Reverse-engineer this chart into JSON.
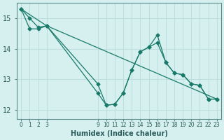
{
  "xlabel": "Humidex (Indice chaleur)",
  "background_color": "#d6f0f0",
  "grid_color": "#c0dede",
  "line_color": "#1a7a6a",
  "xlim": [
    -0.5,
    23.5
  ],
  "ylim": [
    11.7,
    15.5
  ],
  "yticks": [
    12,
    13,
    14,
    15
  ],
  "xticks": [
    0,
    1,
    2,
    3,
    9,
    10,
    11,
    12,
    13,
    14,
    15,
    16,
    17,
    18,
    19,
    20,
    21,
    22,
    23
  ],
  "series1_x": [
    0,
    1,
    2,
    3,
    9,
    10,
    11,
    12,
    13,
    14,
    15,
    16,
    17,
    18,
    19,
    20,
    21,
    22,
    23
  ],
  "series1_y": [
    15.3,
    15.0,
    14.7,
    14.75,
    12.55,
    12.15,
    12.18,
    12.55,
    13.3,
    13.9,
    14.05,
    14.2,
    13.55,
    13.2,
    13.15,
    12.85,
    12.8,
    12.35,
    12.35
  ],
  "series2_x": [
    0,
    1,
    2,
    3,
    9,
    10,
    11,
    12,
    13,
    14,
    15,
    16,
    17,
    18,
    19,
    20,
    21,
    22,
    23
  ],
  "series2_y": [
    15.3,
    14.65,
    14.65,
    14.75,
    12.85,
    12.15,
    12.18,
    12.55,
    13.3,
    13.9,
    14.05,
    14.45,
    13.55,
    13.2,
    13.15,
    12.85,
    12.8,
    12.35,
    12.35
  ],
  "series3_x": [
    0,
    3,
    23
  ],
  "series3_y": [
    15.3,
    14.75,
    12.35
  ]
}
